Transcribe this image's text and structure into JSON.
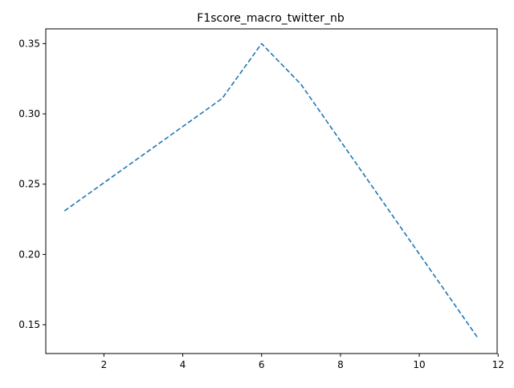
{
  "chart_data": {
    "type": "line",
    "title": "F1score_macro_twitter_nb",
    "xlabel": "",
    "ylabel": "",
    "xlim": [
      0.525,
      11.975
    ],
    "ylim": [
      0.1295,
      0.3605
    ],
    "x_ticks": [
      2,
      4,
      6,
      8,
      10,
      12
    ],
    "y_ticks": [
      0.15,
      0.2,
      0.25,
      0.3,
      0.35
    ],
    "x_tick_labels": [
      "2",
      "4",
      "6",
      "8",
      "10",
      "12"
    ],
    "y_tick_labels": [
      "0.15",
      "0.20",
      "0.25",
      "0.30",
      "0.35"
    ],
    "grid": false,
    "legend": "none",
    "series": [
      {
        "color": "#1f77b4",
        "line_style": "dashed",
        "x": [
          1,
          5,
          6,
          7,
          11.5
        ],
        "y": [
          0.231,
          0.311,
          0.35,
          0.321,
          0.14
        ]
      }
    ]
  }
}
